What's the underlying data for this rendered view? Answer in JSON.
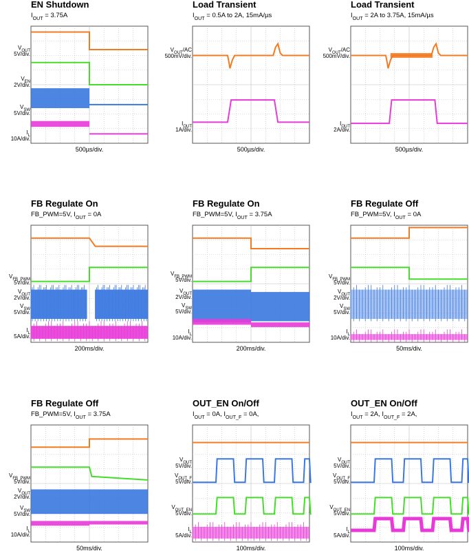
{
  "panels": [
    {
      "title": "EN Shutdown",
      "subtitle": [
        "I",
        {
          "sub": "OUT"
        },
        " = 3.75A"
      ],
      "labels": [
        [
          [
            "V",
            {
              "sub": "OUT"
            }
          ],
          [
            "5V/div."
          ]
        ],
        [
          [
            "V",
            {
              "sub": "EN"
            }
          ],
          [
            "2V/div."
          ]
        ],
        [
          [
            "V",
            {
              "sub": "SW"
            }
          ],
          [
            "5V/div."
          ]
        ],
        [
          [
            "I",
            {
              "sub": "L"
            }
          ],
          [
            "10A/div."
          ]
        ]
      ],
      "time": "500µs/div."
    },
    {
      "title": "Load Transient",
      "subtitle": [
        "I",
        {
          "sub": "OUT"
        },
        " = 0.5A to 2A, 15mA/µs"
      ],
      "labels": [
        [
          [
            "V",
            {
              "sub": "OUT"
            },
            "/AC"
          ],
          [
            "500mV/div."
          ]
        ],
        [
          [
            "I",
            {
              "sub": "OUT"
            }
          ],
          [
            "1A/div."
          ]
        ]
      ],
      "time": "500µs/div."
    },
    {
      "title": "Load Transient",
      "subtitle": [
        "I",
        {
          "sub": "OUT"
        },
        " = 2A to 3.75A, 15mA/µs"
      ],
      "labels": [
        [
          [
            "V",
            {
              "sub": "OUT"
            },
            "/AC"
          ],
          [
            "500mV/div."
          ]
        ],
        [
          [
            "I",
            {
              "sub": "OUT"
            }
          ],
          [
            "2A/div."
          ]
        ]
      ],
      "time": "500µs/div."
    },
    {
      "title": "FB Regulate On",
      "subtitle": [
        "FB_PWM=5V, I",
        {
          "sub": "OUT"
        },
        " = 0A"
      ],
      "labels": [
        [
          [
            "V",
            {
              "sub": "FB_PWM"
            }
          ],
          [
            "5V/div."
          ]
        ],
        [
          [
            "V",
            {
              "sub": "OUT"
            }
          ],
          [
            "2V/div."
          ]
        ],
        [
          [
            "V",
            {
              "sub": "SW"
            }
          ],
          [
            "5V/div."
          ]
        ],
        [
          [
            "I",
            {
              "sub": "L"
            }
          ],
          [
            "5A/div."
          ]
        ]
      ],
      "time": "200ms/div."
    },
    {
      "title": "FB Regulate On",
      "subtitle": [
        "FB_PWM=5V, I",
        {
          "sub": "OUT"
        },
        " = 3.75A"
      ],
      "labels": [
        [
          [
            "V",
            {
              "sub": "FB_PWM"
            }
          ],
          [
            "5V/div."
          ]
        ],
        [
          [
            "V",
            {
              "sub": "OUT"
            }
          ],
          [
            "2V/div."
          ]
        ],
        [
          [
            "V",
            {
              "sub": "SW"
            }
          ],
          [
            "5V/div."
          ]
        ],
        [
          [
            "I",
            {
              "sub": "L"
            }
          ],
          [
            "10A/div."
          ]
        ]
      ],
      "time": "200ms/div."
    },
    {
      "title": "FB Regulate Off",
      "subtitle": [
        "FB_PWM=5V, I",
        {
          "sub": "OUT"
        },
        " = 0A"
      ],
      "labels": [
        [
          [
            "V",
            {
              "sub": "FB_PWM"
            }
          ],
          [
            "5V/div."
          ]
        ],
        [
          [
            "V",
            {
              "sub": "OUT"
            }
          ],
          [
            "2V/div."
          ]
        ],
        [
          [
            "V",
            {
              "sub": "SW"
            }
          ],
          [
            "5V/div."
          ]
        ],
        [
          [
            "I",
            {
              "sub": "L"
            }
          ],
          [
            "10A/div."
          ]
        ]
      ],
      "time": "50ms/div."
    },
    {
      "title": "FB Regulate Off",
      "subtitle": [
        "FB_PWM=5V, I",
        {
          "sub": "OUT"
        },
        " = 3.75A"
      ],
      "labels": [
        [
          [
            "V",
            {
              "sub": "FB_PWM"
            }
          ],
          [
            "5V/div."
          ]
        ],
        [
          [
            "V",
            {
              "sub": "OUT"
            }
          ],
          [
            "2V/div."
          ]
        ],
        [
          [
            "V",
            {
              "sub": "SW"
            }
          ],
          [
            "5V/div."
          ]
        ],
        [
          [
            "I",
            {
              "sub": "L"
            }
          ],
          [
            "10A/div."
          ]
        ]
      ],
      "time": "50ms/div."
    },
    {
      "title": "OUT_EN On/Off",
      "subtitle": [
        "I",
        {
          "sub": "OUT"
        },
        " = 0A, I",
        {
          "sub": "OUT_F"
        },
        " = 0A,"
      ],
      "labels": [
        [
          [
            "V",
            {
              "sub": "OUT"
            }
          ],
          [
            "5V/div."
          ]
        ],
        [
          [
            "V",
            {
              "sub": "OUT_F"
            }
          ],
          [
            "5V/div."
          ]
        ],
        [
          [
            "V",
            {
              "sub": "OUT_EN"
            }
          ],
          [
            "5V/div."
          ]
        ],
        [
          [
            "I",
            {
              "sub": "L"
            }
          ],
          [
            "5A/div."
          ]
        ]
      ],
      "time": "100ms/div."
    },
    {
      "title": "OUT_EN On/Off",
      "subtitle": [
        "I",
        {
          "sub": "OUT"
        },
        " = 2A, I",
        {
          "sub": "OUT_F"
        },
        " = 2A,"
      ],
      "labels": [
        [
          [
            "V",
            {
              "sub": "OUT"
            }
          ],
          [
            "5V/div."
          ]
        ],
        [
          [
            "V",
            {
              "sub": "OUT_F"
            }
          ],
          [
            "5V/div."
          ]
        ],
        [
          [
            "V",
            {
              "sub": "OUT_EN"
            }
          ],
          [
            "5V/div."
          ]
        ],
        [
          [
            "I",
            {
              "sub": "L"
            }
          ],
          [
            "5A/div."
          ]
        ]
      ],
      "time": "100ms/div."
    }
  ]
}
